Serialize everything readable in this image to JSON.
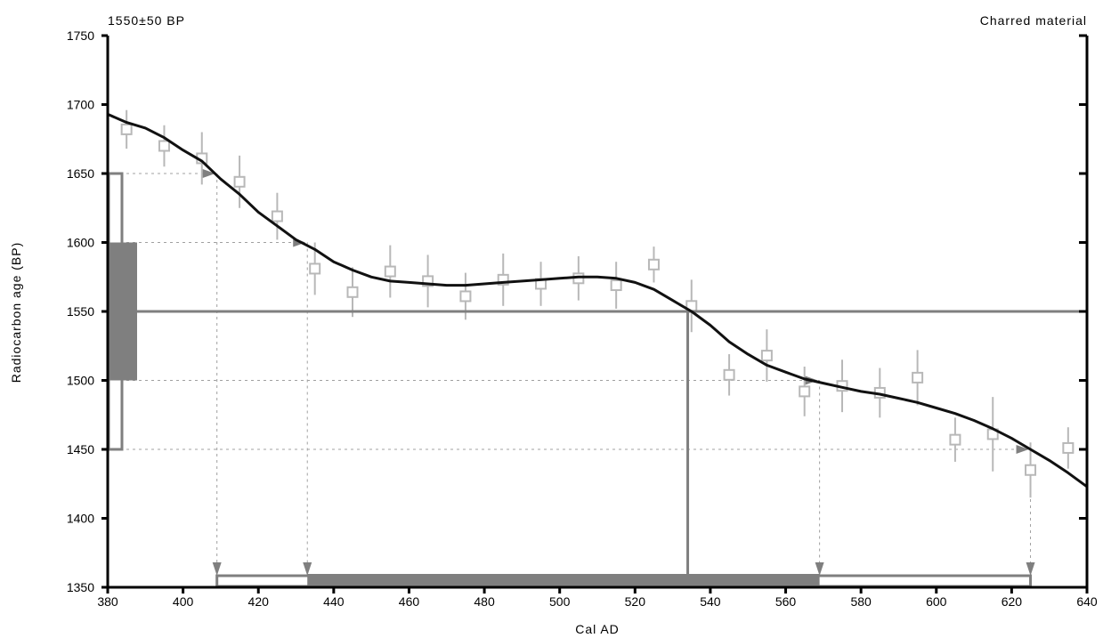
{
  "chart_data": {
    "type": "line",
    "top_left_label": "1550±50 BP",
    "top_right_label": "Charred material",
    "xlabel": "Cal AD",
    "ylabel": "Radiocarbon age (BP)",
    "xlim": [
      380,
      640
    ],
    "ylim": [
      1350,
      1750
    ],
    "x_ticks": [
      380,
      400,
      420,
      440,
      460,
      480,
      500,
      520,
      540,
      560,
      580,
      600,
      620,
      640
    ],
    "y_ticks": [
      1350,
      1400,
      1450,
      1500,
      1550,
      1600,
      1650,
      1700,
      1750
    ],
    "colors": {
      "curve": "#111111",
      "dark_gray": "#7f7f7f",
      "light_gray": "#b8b8b8",
      "axis": "#000000"
    },
    "calibration_curve": {
      "x": [
        380,
        385,
        390,
        395,
        400,
        405,
        410,
        415,
        420,
        425,
        430,
        435,
        440,
        445,
        450,
        455,
        460,
        465,
        470,
        475,
        480,
        485,
        490,
        495,
        500,
        505,
        510,
        515,
        520,
        525,
        530,
        535,
        540,
        545,
        550,
        555,
        560,
        565,
        570,
        575,
        580,
        585,
        590,
        595,
        600,
        605,
        610,
        615,
        620,
        625,
        630,
        635,
        640
      ],
      "y": [
        1693,
        1687,
        1683,
        1676,
        1667,
        1659,
        1646,
        1635,
        1622,
        1612,
        1602,
        1595,
        1586,
        1580,
        1575,
        1572,
        1571,
        1570,
        1569,
        1569,
        1570,
        1571,
        1572,
        1573,
        1574,
        1575,
        1575,
        1574,
        1571,
        1566,
        1558,
        1550,
        1540,
        1528,
        1519,
        1511,
        1506,
        1501,
        1498,
        1495,
        1492,
        1490,
        1487,
        1484,
        1480,
        1476,
        1471,
        1465,
        1458,
        1450,
        1442,
        1433,
        1423
      ]
    },
    "data_points": {
      "x": [
        385,
        395,
        405,
        415,
        425,
        435,
        445,
        455,
        465,
        475,
        485,
        495,
        505,
        515,
        525,
        535,
        545,
        555,
        565,
        575,
        585,
        595,
        605,
        615,
        625,
        635
      ],
      "y": [
        1682,
        1670,
        1661,
        1644,
        1619,
        1581,
        1564,
        1579,
        1572,
        1561,
        1573,
        1570,
        1574,
        1569,
        1584,
        1554,
        1504,
        1518,
        1492,
        1496,
        1491,
        1502,
        1457,
        1461,
        1435,
        1451
      ],
      "err": [
        14,
        15,
        19,
        19,
        17,
        19,
        18,
        19,
        19,
        17,
        19,
        16,
        16,
        17,
        13,
        19,
        15,
        19,
        18,
        19,
        18,
        20,
        16,
        27,
        20,
        15
      ]
    },
    "measurement": {
      "age": 1550,
      "sigma1": [
        1500,
        1600
      ],
      "sigma2": [
        1450,
        1650
      ]
    },
    "calibrated_ranges": {
      "sigma1": [
        433,
        569
      ],
      "sigma2": [
        409,
        625
      ],
      "intercept": 534
    }
  }
}
